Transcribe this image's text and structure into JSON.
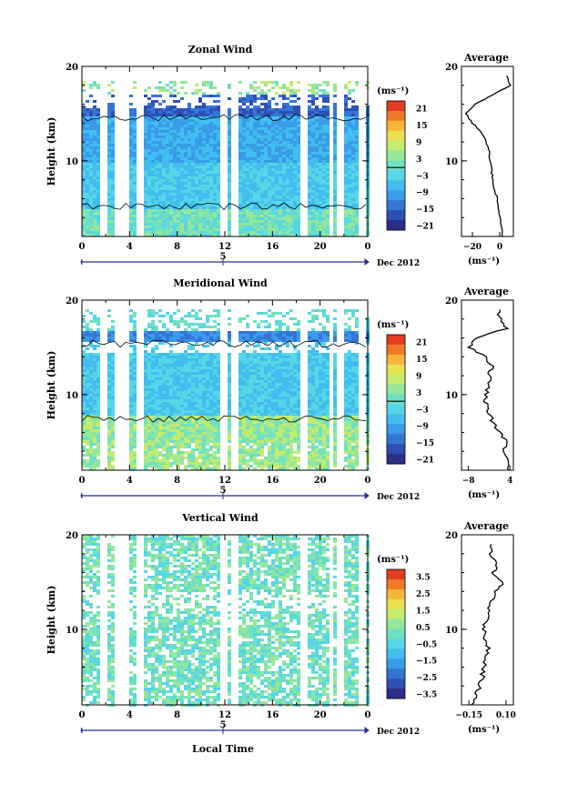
{
  "colorbar_colors": [
    "#2a2f8a",
    "#2f4fb5",
    "#3476d6",
    "#3a9be8",
    "#41bdf0",
    "#56d6e6",
    "#6fe0c0",
    "#95e79a",
    "#c4ec6e",
    "#eae14e",
    "#f6b43a",
    "#f07a2a",
    "#e23c22"
  ],
  "chart_data": [
    {
      "type": "heatmap",
      "title": "Zonal Wind",
      "ylabel": "Height (km)",
      "ylim": [
        2,
        20
      ],
      "y_ticks": [
        "20",
        "10"
      ],
      "x_ticks": [
        "0",
        "4",
        "8",
        "12",
        "16",
        "20",
        "0"
      ],
      "xlim": [
        0,
        24
      ],
      "date_marker": "5",
      "date_label": "Dec 2012",
      "unit": "(ms⁻¹)",
      "colorbar_ticks": [
        "21",
        "15",
        "9",
        "3",
        "−3",
        "−9",
        "−15",
        "−21"
      ],
      "colorbar_range": [
        -24,
        24
      ],
      "profile_title": "Average",
      "profile_xlabel": "(ms⁻¹)",
      "profile_x_ticks": [
        "−20",
        "0"
      ],
      "profile_xlim": [
        -28,
        10
      ],
      "profile_y_ticks": [
        "20",
        "10"
      ],
      "profile": {
        "height": [
          2,
          3,
          4,
          5,
          6,
          7,
          8,
          9,
          10,
          11,
          12,
          13,
          14,
          15,
          16,
          17,
          18,
          19
        ],
        "value": [
          2,
          1,
          0,
          -1,
          -2,
          -4,
          -5,
          -6,
          -7,
          -8,
          -10,
          -13,
          -20,
          -25,
          -18,
          -5,
          8,
          5
        ]
      }
    },
    {
      "type": "heatmap",
      "title": "Meridional Wind",
      "ylabel": "Height (km)",
      "ylim": [
        2,
        20
      ],
      "y_ticks": [
        "20",
        "10"
      ],
      "x_ticks": [
        "0",
        "4",
        "8",
        "12",
        "16",
        "20",
        "0"
      ],
      "xlim": [
        0,
        24
      ],
      "date_marker": "5",
      "date_label": "Dec 2012",
      "unit": "(ms⁻¹)",
      "colorbar_ticks": [
        "21",
        "15",
        "9",
        "3",
        "−3",
        "−9",
        "−15",
        "−21"
      ],
      "colorbar_range": [
        -24,
        24
      ],
      "profile_title": "Average",
      "profile_xlabel": "(ms⁻¹)",
      "profile_x_ticks": [
        "−8",
        "4"
      ],
      "profile_xlim": [
        -10,
        5
      ],
      "profile_y_ticks": [
        "20",
        "10"
      ],
      "profile": {
        "height": [
          2,
          3,
          4,
          5,
          6,
          7,
          8,
          9,
          10,
          11,
          12,
          13,
          14,
          15,
          16,
          17,
          18,
          19
        ],
        "value": [
          3,
          4,
          2,
          3,
          1,
          -1,
          -2,
          -3,
          -3,
          -2,
          -2,
          -1,
          -3,
          -8,
          -6,
          3,
          1,
          1
        ]
      }
    },
    {
      "type": "heatmap",
      "title": "Vertical Wind",
      "ylabel": "Height (km)",
      "ylim": [
        2,
        20
      ],
      "y_ticks": [
        "20",
        "10"
      ],
      "x_ticks": [
        "0",
        "4",
        "8",
        "12",
        "16",
        "20",
        "0"
      ],
      "xlim": [
        0,
        24
      ],
      "date_marker": "5",
      "date_label": "Dec 2012",
      "xlabel": "Local Time",
      "unit": "(ms⁻¹)",
      "colorbar_ticks": [
        "3.5",
        "2.5",
        "1.5",
        "0.5",
        "−0.5",
        "−1.5",
        "−2.5",
        "−3.5"
      ],
      "colorbar_range": [
        -4,
        4
      ],
      "profile_title": "Average",
      "profile_xlabel": "(ms⁻¹)",
      "profile_x_ticks": [
        "−0.15",
        "0.10"
      ],
      "profile_xlim": [
        -0.2,
        0.15
      ],
      "profile_y_ticks": [
        "20",
        "10"
      ],
      "profile": {
        "height": [
          2,
          3,
          4,
          5,
          6,
          7,
          8,
          9,
          10,
          11,
          12,
          13,
          14,
          15,
          16,
          17,
          18,
          19
        ],
        "value": [
          -0.13,
          -0.1,
          -0.08,
          -0.06,
          -0.05,
          -0.03,
          -0.02,
          -0.04,
          -0.05,
          -0.03,
          -0.02,
          0.0,
          0.03,
          0.08,
          0.01,
          0.05,
          -0.01,
          0.0
        ]
      }
    }
  ]
}
